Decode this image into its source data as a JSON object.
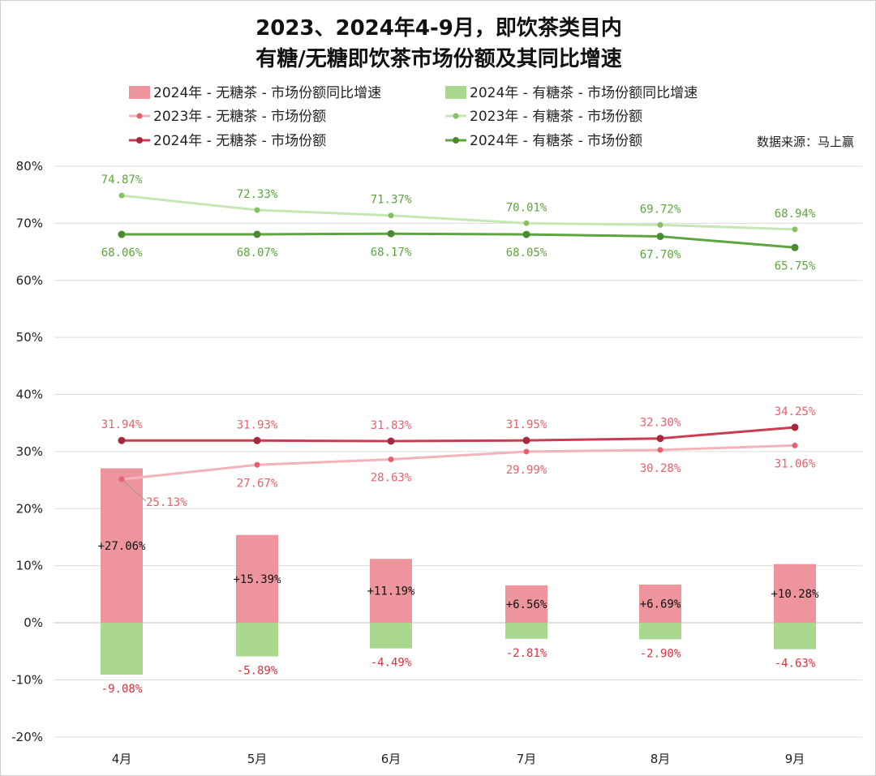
{
  "chart_data": {
    "type": "bar+line",
    "title_line1": "2023、2024年4-9月，即饮茶类目内",
    "title_line2": "有糖/无糖即饮茶市场份额及其同比增速",
    "source": "数据来源：马上赢",
    "categories": [
      "4月",
      "5月",
      "6月",
      "7月",
      "8月",
      "9月"
    ],
    "y_ticks": [
      "80%",
      "70%",
      "60%",
      "50%",
      "40%",
      "30%",
      "20%",
      "10%",
      "0%",
      "-10%",
      "-20%"
    ],
    "ylim": [
      -20,
      80
    ],
    "colors": {
      "bar_sugarfree": "#ed949c",
      "bar_sugary": "#a9d88e",
      "line_sf_2023": "#f2b3bd",
      "line_sf_2024": "#c93c52",
      "line_sg_2023": "#c7e6b6",
      "line_sg_2024": "#5da53e",
      "label_red": "#e0303c",
      "label_red_light": "#e8606c",
      "label_green": "#5da53e"
    },
    "bars": [
      {
        "name": "2024年 - 无糖茶 - 市场份额同比增速",
        "values": [
          27.06,
          15.39,
          11.19,
          6.56,
          6.69,
          10.28
        ],
        "labels": [
          "+27.06%",
          "+15.39%",
          "+11.19%",
          "+6.56%",
          "+6.69%",
          "+10.28%"
        ]
      },
      {
        "name": "2024年 - 有糖茶 - 市场份额同比增速",
        "values": [
          -9.08,
          -5.89,
          -4.49,
          -2.81,
          -2.9,
          -4.63
        ],
        "labels": [
          "-9.08%",
          "-5.89%",
          "-4.49%",
          "-2.81%",
          "-2.90%",
          "-4.63%"
        ]
      }
    ],
    "lines": [
      {
        "name": "2023年 - 无糖茶 -  市场份额",
        "values": [
          25.13,
          27.67,
          28.63,
          29.99,
          30.28,
          31.06
        ],
        "labels": [
          "25.13%",
          "27.67%",
          "28.63%",
          "29.99%",
          "30.28%",
          "31.06%"
        ]
      },
      {
        "name": "2023年 - 有糖茶 -  市场份额",
        "values": [
          74.87,
          72.33,
          71.37,
          70.01,
          69.72,
          68.94
        ],
        "labels": [
          "74.87%",
          "72.33%",
          "71.37%",
          "70.01%",
          "69.72%",
          "68.94%"
        ]
      },
      {
        "name": "2024年 - 无糖茶 -  市场份额",
        "values": [
          31.94,
          31.93,
          31.83,
          31.95,
          32.3,
          34.25
        ],
        "labels": [
          "31.94%",
          "31.93%",
          "31.83%",
          "31.95%",
          "32.30%",
          "34.25%"
        ]
      },
      {
        "name": "2024年 - 有糖茶 -  市场份额",
        "values": [
          68.06,
          68.07,
          68.17,
          68.05,
          67.7,
          65.75
        ],
        "labels": [
          "68.06%",
          "68.07%",
          "68.17%",
          "68.05%",
          "67.70%",
          "65.75%"
        ]
      }
    ]
  }
}
